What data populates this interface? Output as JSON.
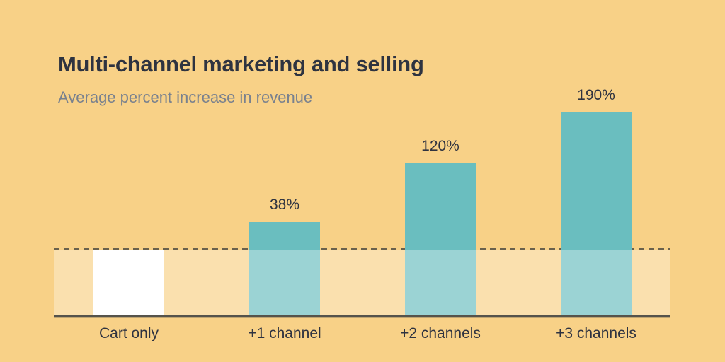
{
  "header": {
    "title": "Multi-channel marketing and selling",
    "subtitle": "Average percent increase in revenue"
  },
  "chart_data": {
    "type": "bar",
    "title": "Multi-channel marketing and selling",
    "subtitle": "Average percent increase in revenue",
    "categories": [
      "Cart only",
      "+1 channel",
      "+2 channels",
      "+3 channels"
    ],
    "values": [
      0,
      38,
      120,
      190
    ],
    "value_labels": [
      "",
      "38%",
      "120%",
      "190%"
    ],
    "unit": "percent increase in revenue",
    "ylim": [
      0,
      200
    ],
    "grid": false,
    "legend": false,
    "baseline_marker": "dashed line with shaded band marking the cart-only baseline",
    "bar_colors": [
      "#FFFFFF",
      "#6ABEBF",
      "#6ABEBF",
      "#6ABEBF"
    ]
  },
  "colors": {
    "background": "#F8D187",
    "bar_teal": "#6ABEBF",
    "bar_white": "#FFFFFF",
    "baseline_band": "#FFFFFF",
    "dashed_line": "#6A614C",
    "axis_line": "#55534B",
    "title_text": "#2E3340",
    "subtitle_text": "#79818E",
    "label_text": "#2F3340"
  }
}
